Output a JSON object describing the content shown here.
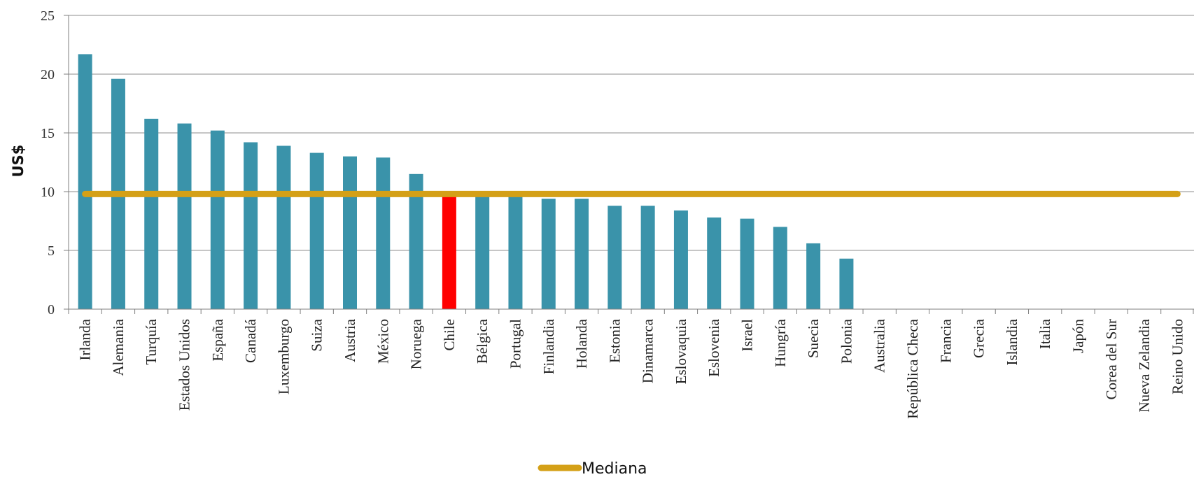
{
  "chart_data": {
    "type": "bar",
    "title": "",
    "xlabel": "",
    "ylabel": "US$",
    "ylim": [
      0,
      25
    ],
    "yticks": [
      0,
      5,
      10,
      15,
      20,
      25
    ],
    "grid": true,
    "legend_position": "bottom",
    "categories": [
      "Irlanda",
      "Alemania",
      "Turquía",
      "Estados Unidos",
      "España",
      "Canadá",
      "Luxemburgo",
      "Suiza",
      "Austria",
      "México",
      "Noruega",
      "Chile",
      "Bélgica",
      "Portugal",
      "Finlandia",
      "Holanda",
      "Estonia",
      "Dinamarca",
      "Eslovaquia",
      "Eslovenia",
      "Israel",
      "Hungría",
      "Suecia",
      "Polonia",
      "Australia",
      "República Checa",
      "Francia",
      "Grecia",
      "Islandia",
      "Italia",
      "Japón",
      "Corea del Sur",
      "Nueva Zelandia",
      "Reino Unido"
    ],
    "values": [
      21.7,
      19.6,
      16.2,
      15.8,
      15.2,
      14.2,
      13.9,
      13.3,
      13.0,
      12.9,
      11.5,
      9.8,
      9.8,
      9.8,
      9.4,
      9.4,
      8.8,
      8.8,
      8.4,
      7.8,
      7.7,
      7.0,
      5.6,
      4.3,
      null,
      null,
      null,
      null,
      null,
      null,
      null,
      null,
      null,
      null
    ],
    "highlight": "Chile",
    "series": [
      {
        "name": "Mediana",
        "type": "line",
        "value": 9.8
      }
    ],
    "colors": {
      "bar": "#3A93AA",
      "highlight": "#FF0000",
      "median": "#D4A017",
      "grid": "#8C8C8C",
      "axis": "#7F7F7F"
    }
  }
}
